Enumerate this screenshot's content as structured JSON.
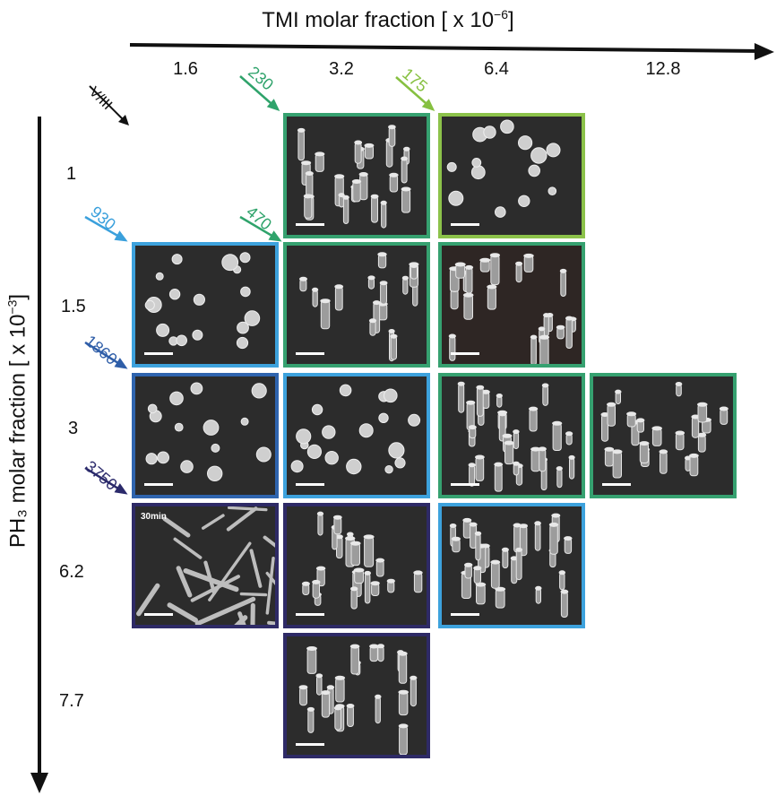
{
  "x_axis": {
    "title": "TMI molar fraction [ x 10",
    "exponent": "−6",
    "closing": "]",
    "columns": [
      "1.6",
      "3.2",
      "6.4",
      "12.8"
    ]
  },
  "y_axis": {
    "title": "PH₃ molar fraction [ x 10",
    "exponent": "−3",
    "closing": "]",
    "rows": [
      "1",
      "1.5",
      "3",
      "6.2",
      "7.7"
    ]
  },
  "corner_label": "V/III",
  "ratios": [
    {
      "text": "230",
      "color": "#2fa36b"
    },
    {
      "text": "175",
      "color": "#86c040"
    },
    {
      "text": "930",
      "color": "#3aa0dc"
    },
    {
      "text": "470",
      "color": "#2fa36b"
    },
    {
      "text": "1860",
      "color": "#2f5ea8"
    },
    {
      "text": "3750",
      "color": "#2b2a6b"
    }
  ],
  "tiles": [
    {
      "row": 0,
      "col": 1,
      "border": "#36a170",
      "kind": "pillars"
    },
    {
      "row": 0,
      "col": 2,
      "border": "#8cc24a",
      "kind": "dots"
    },
    {
      "row": 1,
      "col": 0,
      "border": "#3da2dd",
      "kind": "dots"
    },
    {
      "row": 1,
      "col": 1,
      "border": "#36a170",
      "kind": "pillars"
    },
    {
      "row": 1,
      "col": 2,
      "border": "#36a170",
      "kind": "pillars"
    },
    {
      "row": 2,
      "col": 0,
      "border": "#2f64ae",
      "kind": "dots"
    },
    {
      "row": 2,
      "col": 1,
      "border": "#3da2dd",
      "kind": "dots"
    },
    {
      "row": 2,
      "col": 2,
      "border": "#36a170",
      "kind": "pillars"
    },
    {
      "row": 2,
      "col": 3,
      "border": "#36a170",
      "kind": "pillars"
    },
    {
      "row": 3,
      "col": 0,
      "border": "#2e2a66",
      "kind": "wires",
      "note": "30min"
    },
    {
      "row": 3,
      "col": 1,
      "border": "#2e2a66",
      "kind": "pillars"
    },
    {
      "row": 3,
      "col": 2,
      "border": "#3da2dd",
      "kind": "pillars"
    },
    {
      "row": 4,
      "col": 1,
      "border": "#2e2a66",
      "kind": "pillars"
    }
  ]
}
